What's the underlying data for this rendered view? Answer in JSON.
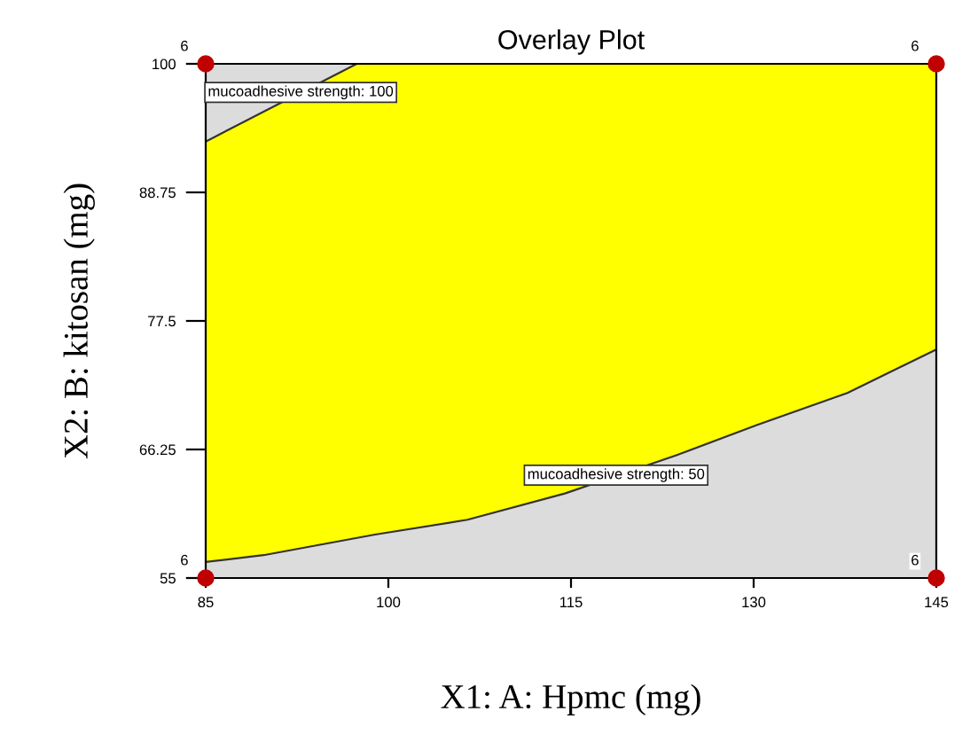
{
  "chart_data": {
    "type": "line",
    "title": "Overlay Plot",
    "xlabel": "X1: A: Hpmc (mg)",
    "ylabel": "X2: B: kitosan (mg)",
    "xlim": [
      85,
      145
    ],
    "xticks": [
      85,
      100,
      115,
      130,
      145
    ],
    "ylim": [
      55,
      100
    ],
    "yticks": [
      55,
      66.25,
      77.5,
      88.75,
      100
    ],
    "grid": false,
    "marker": "none",
    "series": [
      {
        "color": "#333333",
        "x": [
          85,
          97.4
        ],
        "values": [
          93.2,
          100
        ]
      },
      {
        "color": "#333333",
        "x": [
          85,
          89.75,
          98.9,
          106.5,
          114.5,
          123.8,
          130.3,
          137.7,
          145
        ],
        "values": [
          56.4,
          57.0,
          58.8,
          60.1,
          62.4,
          65.8,
          68.4,
          71.2,
          75.0
        ]
      },
      {
        "type": "scatter",
        "color": "#c00000",
        "marker": "circle",
        "x": [
          85,
          85,
          145,
          145
        ],
        "values": [
          55,
          100,
          100,
          55
        ]
      }
    ],
    "annotations": [
      {
        "text": "mucoadhesive strength: 100",
        "x": 92.8,
        "y": 97.5
      },
      {
        "text": "mucoadhesive strength: 50",
        "x": 118.7,
        "y": 64.0
      },
      {
        "text": "6",
        "x": 85,
        "y": 55
      },
      {
        "text": "6",
        "x": 85,
        "y": 100
      },
      {
        "text": "6",
        "x": 145,
        "y": 100
      },
      {
        "text": "6",
        "x": 145,
        "y": 55
      }
    ]
  }
}
